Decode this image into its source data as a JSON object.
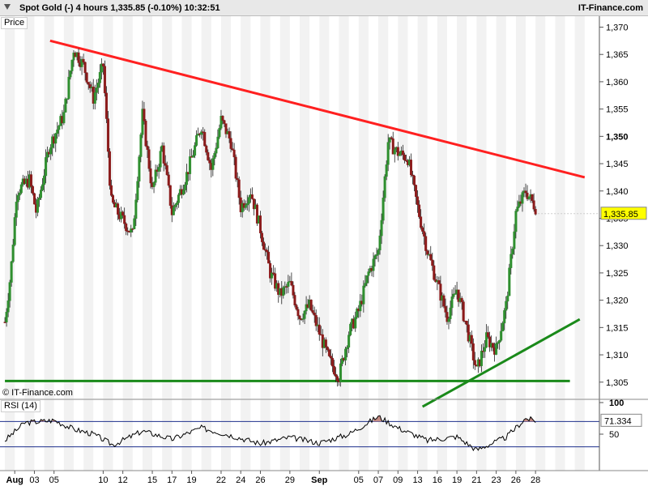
{
  "header": {
    "title": "Spot Gold (-)   4 hours    1,335.85 (-0.10%)    10:32:51",
    "site": "IT-Finance.com"
  },
  "price_panel": {
    "label": "Price",
    "copyright": "© IT-Finance.com"
  },
  "rsi_panel": {
    "label": "RSI (14)"
  },
  "colors": {
    "candle_up": "#2f8f2f",
    "candle_down": "#8b1a1a",
    "resistance": "#ff2020",
    "support": "#1a8a1a",
    "rsi_line": "#000000",
    "rsi_band": "#1d2f8c",
    "overbought_fill": "#c48b84",
    "current_tag": "#ffff00"
  },
  "chart_data": [
    {
      "type": "candlestick",
      "title": "Spot Gold (-) 4 hours",
      "ylim": [
        1302,
        1372
      ],
      "yticks": [
        1305,
        1310,
        1315,
        1320,
        1325,
        1330,
        1335,
        1340,
        1345,
        1350,
        1355,
        1360,
        1365,
        1370
      ],
      "ytick_labels": [
        "1,305",
        "1,310",
        "1,315",
        "1,320",
        "1,325",
        "1,330",
        "1,335",
        "1,340",
        "1,345",
        "1,350",
        "1,355",
        "1,360",
        "1,365",
        "1,370"
      ],
      "xaxis": {
        "labels": [
          {
            "text": "Aug",
            "bold": true,
            "day": 1
          },
          {
            "text": "03",
            "day": 3
          },
          {
            "text": "05",
            "day": 5
          },
          {
            "text": "10",
            "day": 10
          },
          {
            "text": "12",
            "day": 12
          },
          {
            "text": "15",
            "day": 15
          },
          {
            "text": "17",
            "day": 17
          },
          {
            "text": "19",
            "day": 19
          },
          {
            "text": "22",
            "day": 22
          },
          {
            "text": "24",
            "day": 24
          },
          {
            "text": "26",
            "day": 26
          },
          {
            "text": "29",
            "day": 29
          },
          {
            "text": "Sep",
            "bold": true,
            "day": 32
          },
          {
            "text": "05",
            "day": 36
          },
          {
            "text": "07",
            "day": 38
          },
          {
            "text": "09",
            "day": 40
          },
          {
            "text": "13",
            "day": 42
          },
          {
            "text": "16",
            "day": 44
          },
          {
            "text": "19",
            "day": 46
          },
          {
            "text": "21",
            "day": 48
          },
          {
            "text": "23",
            "day": 50
          },
          {
            "text": "26",
            "day": 52
          },
          {
            "text": "28",
            "day": 54
          }
        ]
      },
      "close_path": [
        {
          "t": 0,
          "v": 1316
        },
        {
          "t": 0.6,
          "v": 1325
        },
        {
          "t": 1.2,
          "v": 1340
        },
        {
          "t": 2.5,
          "v": 1342
        },
        {
          "t": 3.2,
          "v": 1336
        },
        {
          "t": 4.5,
          "v": 1348
        },
        {
          "t": 6,
          "v": 1354
        },
        {
          "t": 7,
          "v": 1366
        },
        {
          "t": 8,
          "v": 1363
        },
        {
          "t": 9,
          "v": 1357
        },
        {
          "t": 10,
          "v": 1363
        },
        {
          "t": 10.8,
          "v": 1338
        },
        {
          "t": 11.5,
          "v": 1336
        },
        {
          "t": 13,
          "v": 1332
        },
        {
          "t": 14,
          "v": 1354
        },
        {
          "t": 15,
          "v": 1340
        },
        {
          "t": 16,
          "v": 1348
        },
        {
          "t": 17,
          "v": 1336
        },
        {
          "t": 18.5,
          "v": 1343
        },
        {
          "t": 20,
          "v": 1352
        },
        {
          "t": 21,
          "v": 1344
        },
        {
          "t": 22,
          "v": 1353
        },
        {
          "t": 23,
          "v": 1349
        },
        {
          "t": 24,
          "v": 1337
        },
        {
          "t": 25,
          "v": 1340
        },
        {
          "t": 26,
          "v": 1333
        },
        {
          "t": 27,
          "v": 1325
        },
        {
          "t": 28,
          "v": 1321
        },
        {
          "t": 29,
          "v": 1323
        },
        {
          "t": 30,
          "v": 1317
        },
        {
          "t": 31,
          "v": 1319
        },
        {
          "t": 32,
          "v": 1314
        },
        {
          "t": 33,
          "v": 1309
        },
        {
          "t": 34,
          "v": 1306
        },
        {
          "t": 35,
          "v": 1314
        },
        {
          "t": 36,
          "v": 1318
        },
        {
          "t": 37,
          "v": 1325
        },
        {
          "t": 38,
          "v": 1329
        },
        {
          "t": 39,
          "v": 1349
        },
        {
          "t": 40,
          "v": 1347
        },
        {
          "t": 41,
          "v": 1346
        },
        {
          "t": 42,
          "v": 1337
        },
        {
          "t": 43,
          "v": 1329
        },
        {
          "t": 44,
          "v": 1323
        },
        {
          "t": 45,
          "v": 1317
        },
        {
          "t": 46,
          "v": 1322
        },
        {
          "t": 47,
          "v": 1315
        },
        {
          "t": 48,
          "v": 1307
        },
        {
          "t": 49,
          "v": 1313
        },
        {
          "t": 50,
          "v": 1311
        },
        {
          "t": 51,
          "v": 1319
        },
        {
          "t": 52,
          "v": 1336
        },
        {
          "t": 53,
          "v": 1340
        },
        {
          "t": 54,
          "v": 1337
        }
      ],
      "current_price": 1335.85,
      "current_label": "1,335.85",
      "bold_tick": 1350,
      "lines": [
        {
          "name": "resistance",
          "from": {
            "t": 4.6,
            "v": 1367.5
          },
          "to": {
            "t": 59,
            "v": 1342.5
          }
        },
        {
          "name": "support",
          "from": {
            "t": 0,
            "v": 1305.2
          },
          "to": {
            "t": 57.5,
            "v": 1305.2
          }
        },
        {
          "name": "uptrend",
          "from": {
            "t": 42.5,
            "v": 1300.5
          },
          "to": {
            "t": 58.5,
            "v": 1316.5
          }
        }
      ]
    },
    {
      "type": "line",
      "title": "RSI (14)",
      "ylim": [
        0,
        100
      ],
      "yticks": [
        50,
        100
      ],
      "ytick_labels": [
        "50",
        "100"
      ],
      "bands": [
        30,
        70
      ],
      "current_value": 71.334,
      "current_label": "71.334",
      "path": [
        {
          "t": 0,
          "v": 40
        },
        {
          "t": 2,
          "v": 68
        },
        {
          "t": 5,
          "v": 72
        },
        {
          "t": 7,
          "v": 58
        },
        {
          "t": 9,
          "v": 50
        },
        {
          "t": 11,
          "v": 33
        },
        {
          "t": 14,
          "v": 55
        },
        {
          "t": 17,
          "v": 42
        },
        {
          "t": 20,
          "v": 60
        },
        {
          "t": 23,
          "v": 48
        },
        {
          "t": 26,
          "v": 35
        },
        {
          "t": 29,
          "v": 45
        },
        {
          "t": 32,
          "v": 36
        },
        {
          "t": 35,
          "v": 50
        },
        {
          "t": 38,
          "v": 78
        },
        {
          "t": 40,
          "v": 60
        },
        {
          "t": 43,
          "v": 40
        },
        {
          "t": 46,
          "v": 46
        },
        {
          "t": 48,
          "v": 25
        },
        {
          "t": 51,
          "v": 45
        },
        {
          "t": 53,
          "v": 75
        },
        {
          "t": 54,
          "v": 71.3
        }
      ]
    }
  ]
}
